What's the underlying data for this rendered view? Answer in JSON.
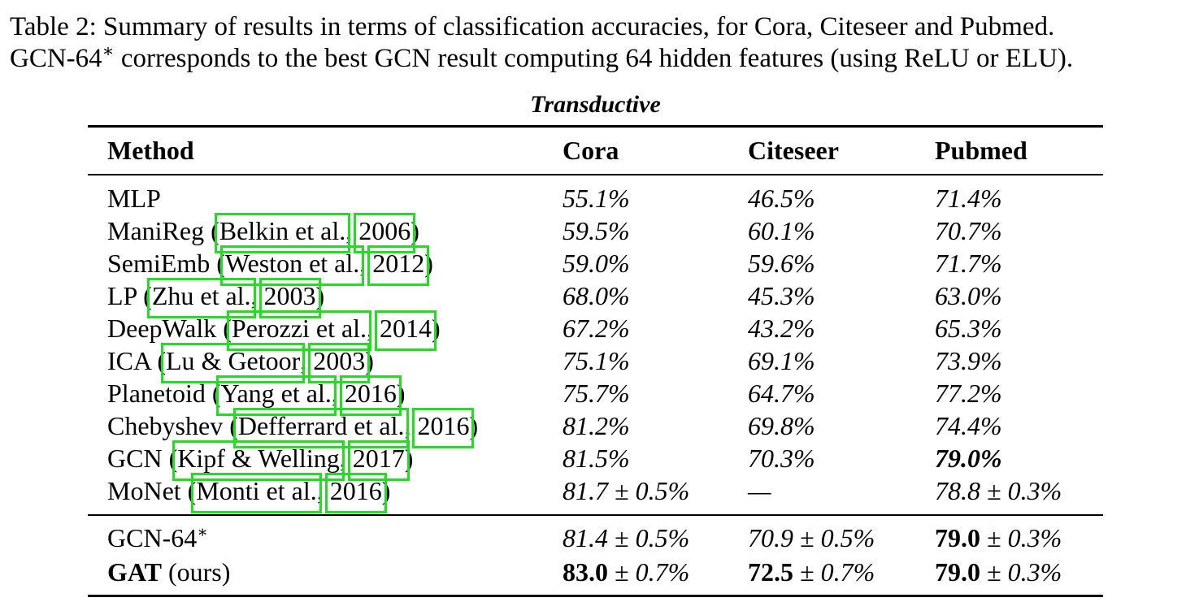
{
  "caption": {
    "line1": "Table 2: Summary of results in terms of classification accuracies, for Cora, Citeseer and Pubmed.",
    "line2_pre": "GCN-64",
    "line2_sup": "∗",
    "line2_post": " corresponds to the best GCN result computing 64 hidden features (using ReLU or ELU)."
  },
  "table": {
    "title": "Transductive",
    "headers": [
      "Method",
      "Cora",
      "Citeseer",
      "Pubmed"
    ],
    "rows": [
      {
        "method": "MLP",
        "refs": [],
        "cora": "55.1%",
        "citeseer": "46.5%",
        "pubmed": "71.4%"
      },
      {
        "method": "ManiReg",
        "refs": [
          "Belkin et al.",
          "2006"
        ],
        "cora": "59.5%",
        "citeseer": "60.1%",
        "pubmed": "70.7%"
      },
      {
        "method": "SemiEmb",
        "refs": [
          "Weston et al.",
          "2012"
        ],
        "cora": "59.0%",
        "citeseer": "59.6%",
        "pubmed": "71.7%"
      },
      {
        "method": "LP",
        "refs": [
          "Zhu et al.",
          "2003"
        ],
        "cora": "68.0%",
        "citeseer": "45.3%",
        "pubmed": "63.0%"
      },
      {
        "method": "DeepWalk",
        "refs": [
          "Perozzi et al.",
          "2014"
        ],
        "cora": "67.2%",
        "citeseer": "43.2%",
        "pubmed": "65.3%"
      },
      {
        "method": "ICA",
        "refs": [
          "Lu & Getoor",
          "2003"
        ],
        "cora": "75.1%",
        "citeseer": "69.1%",
        "pubmed": "73.9%"
      },
      {
        "method": "Planetoid",
        "refs": [
          "Yang et al.",
          "2016"
        ],
        "cora": "75.7%",
        "citeseer": "64.7%",
        "pubmed": "77.2%"
      },
      {
        "method": "Chebyshev",
        "refs": [
          "Defferrard et al.",
          "2016"
        ],
        "cora": "81.2%",
        "citeseer": "69.8%",
        "pubmed": "74.4%"
      },
      {
        "method": "GCN",
        "refs": [
          "Kipf & Welling",
          "2017"
        ],
        "cora": "81.5%",
        "citeseer": "70.3%",
        "pubmed": "79.0%"
      },
      {
        "method": "MoNet",
        "refs": [
          "Monti et al.",
          "2016"
        ],
        "cora_a": "81.7",
        "cora_b": " ± 0.5%",
        "citeseer": "—",
        "pubmed_a": "78.8",
        "pubmed_b": " ± 0.3%"
      }
    ],
    "rows2": [
      {
        "method": "GCN-64",
        "method_sup": "∗",
        "cora_a": "81.4",
        "cora_b": " ± 0.5%",
        "citeseer_a": "70.9",
        "citeseer_b": " ± 0.5%",
        "pubmed_a": "79.0",
        "pubmed_b": " ± 0.3%"
      },
      {
        "method_bold": "GAT",
        "method_rest": " (ours)",
        "cora_a": "83.0",
        "cora_b": " ± 0.7%",
        "citeseer_a": "72.5",
        "citeseer_b": " ± 0.7%",
        "pubmed_a": "79.0",
        "pubmed_b": " ± 0.3%"
      }
    ]
  },
  "highlight_color": "#22dd22"
}
